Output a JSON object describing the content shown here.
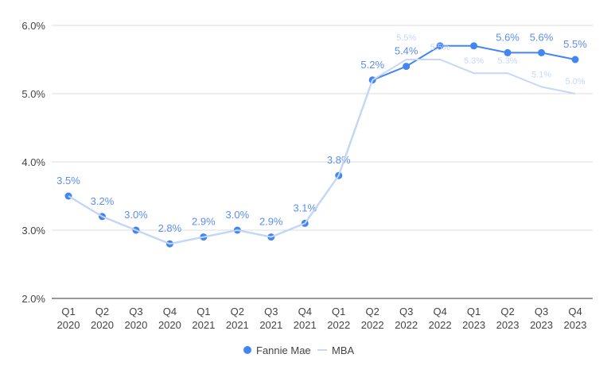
{
  "chart_data": {
    "type": "line",
    "title": "",
    "xlabel": "",
    "ylabel": "",
    "categories": [
      [
        "Q1",
        "2020"
      ],
      [
        "Q2",
        "2020"
      ],
      [
        "Q3",
        "2020"
      ],
      [
        "Q4",
        "2020"
      ],
      [
        "Q1",
        "2021"
      ],
      [
        "Q2",
        "2021"
      ],
      [
        "Q3",
        "2021"
      ],
      [
        "Q4",
        "2021"
      ],
      [
        "Q1",
        "2022"
      ],
      [
        "Q2",
        "2022"
      ],
      [
        "Q3",
        "2022"
      ],
      [
        "Q4",
        "2022"
      ],
      [
        "Q1",
        "2023"
      ],
      [
        "Q2",
        "2023"
      ],
      [
        "Q3",
        "2023"
      ],
      [
        "Q4",
        "2023"
      ]
    ],
    "ylim": [
      2.0,
      6.0
    ],
    "yticks": [
      "2.0%",
      "3.0%",
      "4.0%",
      "5.0%",
      "6.0%"
    ],
    "grid": true,
    "legend_placement": "bottom",
    "series": [
      {
        "name": "Fannie Mae",
        "color": "#4285f4",
        "marker": "circle",
        "values": [
          3.5,
          3.2,
          3.0,
          2.8,
          2.9,
          3.0,
          2.9,
          3.1,
          3.8,
          5.2,
          5.4,
          5.7,
          5.7,
          5.6,
          5.6,
          5.5
        ],
        "labels": [
          "3.5%",
          "3.2%",
          "3.0%",
          "2.8%",
          "2.9%",
          "3.0%",
          "2.9%",
          "3.1%",
          "3.8%",
          "5.2%",
          "5.4%",
          "",
          "",
          "5.6%",
          "5.6%",
          "5.5%"
        ]
      },
      {
        "name": "MBA",
        "color": "#c6d8f7",
        "marker": "none",
        "values": [
          3.5,
          3.2,
          3.0,
          2.8,
          2.9,
          3.0,
          2.9,
          3.1,
          3.8,
          5.2,
          5.5,
          5.5,
          5.3,
          5.3,
          5.1,
          5.0
        ],
        "labels": [
          "",
          "",
          "",
          "",
          "",
          "",
          "",
          "",
          "",
          "",
          "5.5%",
          "5.5%",
          "5.3%",
          "5.3%",
          "5.1%",
          "5.0%"
        ]
      }
    ]
  }
}
